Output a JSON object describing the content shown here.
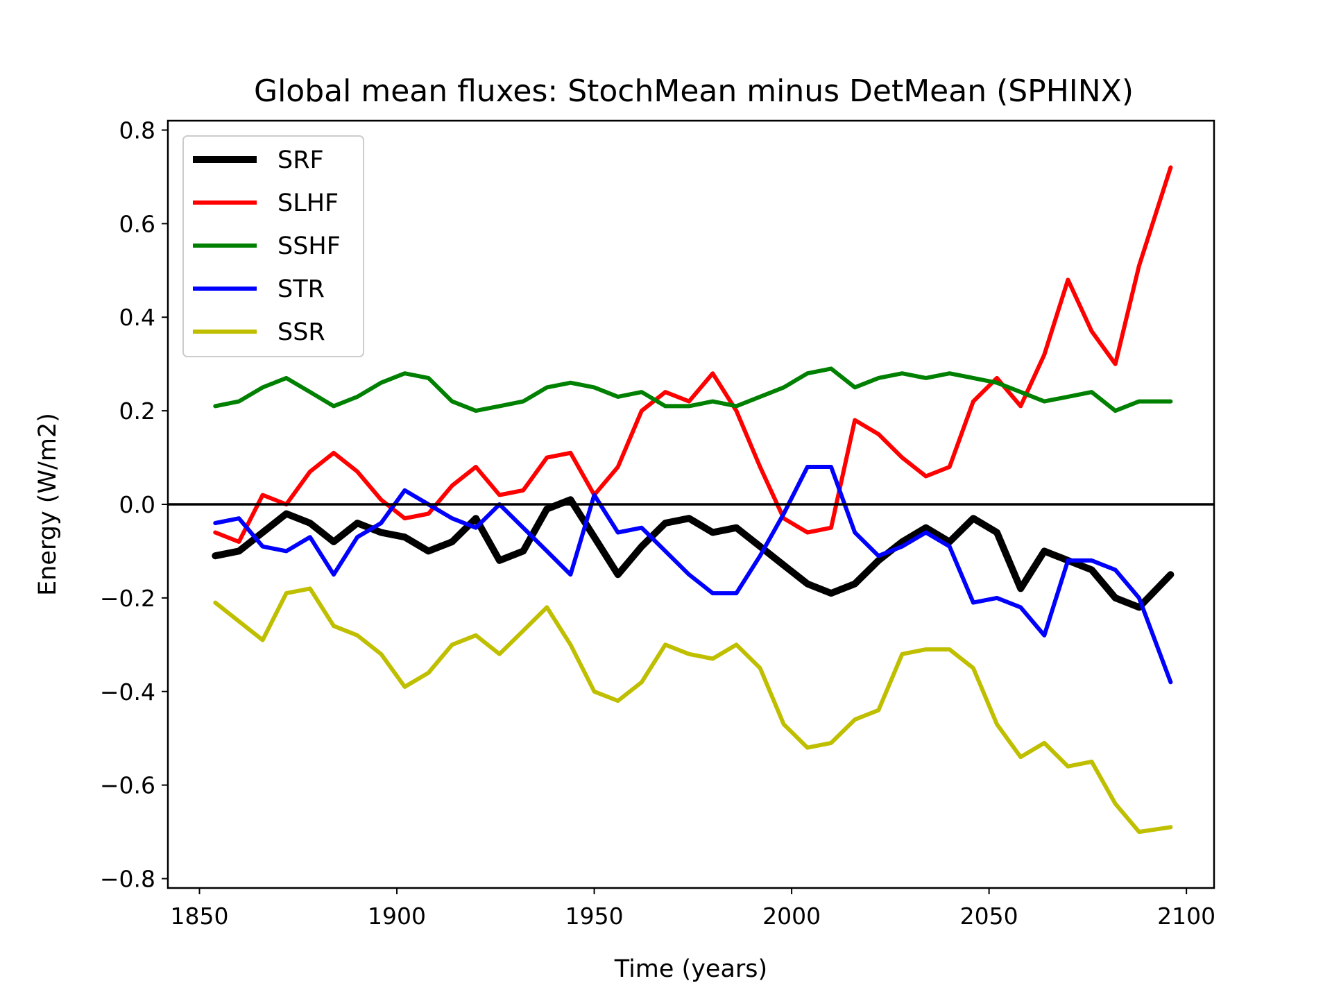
{
  "chart_data": {
    "type": "line",
    "title": "Global mean fluxes: StochMean minus DetMean (SPHINX)",
    "xlabel": "Time (years)",
    "ylabel": "Energy (W/m2)",
    "xlim": [
      1842,
      2107
    ],
    "ylim": [
      -0.82,
      0.82
    ],
    "xticks": [
      1850,
      1900,
      1950,
      2000,
      2050,
      2100
    ],
    "yticks": [
      0.8,
      0.6,
      0.4,
      0.2,
      0.0,
      -0.2,
      -0.4,
      -0.6,
      -0.8
    ],
    "xtick_labels": [
      "1850",
      "1900",
      "1950",
      "2000",
      "2050",
      "2100"
    ],
    "ytick_labels": [
      "0.8",
      "0.6",
      "0.4",
      "0.2",
      "0.0",
      "−0.2",
      "−0.4",
      "−0.6",
      "−0.8"
    ],
    "hline": 0.0,
    "legend_position": "upper-left",
    "x": [
      1854,
      1860,
      1866,
      1872,
      1878,
      1884,
      1890,
      1896,
      1902,
      1908,
      1914,
      1920,
      1926,
      1932,
      1938,
      1944,
      1950,
      1956,
      1962,
      1968,
      1974,
      1980,
      1986,
      1992,
      1998,
      2004,
      2010,
      2016,
      2022,
      2028,
      2034,
      2040,
      2046,
      2052,
      2058,
      2064,
      2070,
      2076,
      2082,
      2088,
      2096
    ],
    "series": [
      {
        "name": "SRF",
        "color": "#000000",
        "width": 10,
        "values": [
          -0.11,
          -0.1,
          -0.06,
          -0.02,
          -0.04,
          -0.08,
          -0.04,
          -0.06,
          -0.07,
          -0.1,
          -0.08,
          -0.03,
          -0.12,
          -0.1,
          -0.01,
          0.01,
          -0.07,
          -0.15,
          -0.09,
          -0.04,
          -0.03,
          -0.06,
          -0.05,
          -0.09,
          -0.13,
          -0.17,
          -0.19,
          -0.17,
          -0.12,
          -0.08,
          -0.05,
          -0.08,
          -0.03,
          -0.06,
          -0.18,
          -0.1,
          -0.12,
          -0.14,
          -0.2,
          -0.22,
          -0.15
        ]
      },
      {
        "name": "SLHF",
        "color": "#ff0000",
        "width": 6,
        "values": [
          -0.06,
          -0.08,
          0.02,
          0.0,
          0.07,
          0.11,
          0.07,
          0.01,
          -0.03,
          -0.02,
          0.04,
          0.08,
          0.02,
          0.03,
          0.1,
          0.11,
          0.02,
          0.08,
          0.2,
          0.24,
          0.22,
          0.28,
          0.2,
          0.08,
          -0.03,
          -0.06,
          -0.05,
          0.18,
          0.15,
          0.1,
          0.06,
          0.08,
          0.22,
          0.27,
          0.21,
          0.32,
          0.48,
          0.37,
          0.3,
          0.51,
          0.72
        ]
      },
      {
        "name": "SSHF",
        "color": "#008000",
        "width": 6,
        "values": [
          0.21,
          0.22,
          0.25,
          0.27,
          0.24,
          0.21,
          0.23,
          0.26,
          0.28,
          0.27,
          0.22,
          0.2,
          0.21,
          0.22,
          0.25,
          0.26,
          0.25,
          0.23,
          0.24,
          0.21,
          0.21,
          0.22,
          0.21,
          0.23,
          0.25,
          0.28,
          0.29,
          0.25,
          0.27,
          0.28,
          0.27,
          0.28,
          0.27,
          0.26,
          0.24,
          0.22,
          0.23,
          0.24,
          0.2,
          0.22,
          0.22
        ]
      },
      {
        "name": "STR",
        "color": "#0000ff",
        "width": 6,
        "values": [
          -0.04,
          -0.03,
          -0.09,
          -0.1,
          -0.07,
          -0.15,
          -0.07,
          -0.04,
          0.03,
          0.0,
          -0.03,
          -0.05,
          0.0,
          -0.05,
          -0.1,
          -0.15,
          0.02,
          -0.06,
          -0.05,
          -0.1,
          -0.15,
          -0.19,
          -0.19,
          -0.11,
          -0.02,
          0.08,
          0.08,
          -0.06,
          -0.11,
          -0.09,
          -0.06,
          -0.09,
          -0.21,
          -0.2,
          -0.22,
          -0.28,
          -0.12,
          -0.12,
          -0.14,
          -0.2,
          -0.38
        ]
      },
      {
        "name": "SSR",
        "color": "#bfbf00",
        "width": 6,
        "values": [
          -0.21,
          -0.25,
          -0.29,
          -0.19,
          -0.18,
          -0.26,
          -0.28,
          -0.32,
          -0.39,
          -0.36,
          -0.3,
          -0.28,
          -0.32,
          -0.27,
          -0.22,
          -0.3,
          -0.4,
          -0.42,
          -0.38,
          -0.3,
          -0.32,
          -0.33,
          -0.3,
          -0.35,
          -0.47,
          -0.52,
          -0.51,
          -0.46,
          -0.44,
          -0.32,
          -0.31,
          -0.31,
          -0.35,
          -0.47,
          -0.54,
          -0.51,
          -0.56,
          -0.55,
          -0.64,
          -0.7,
          -0.69
        ]
      }
    ]
  }
}
